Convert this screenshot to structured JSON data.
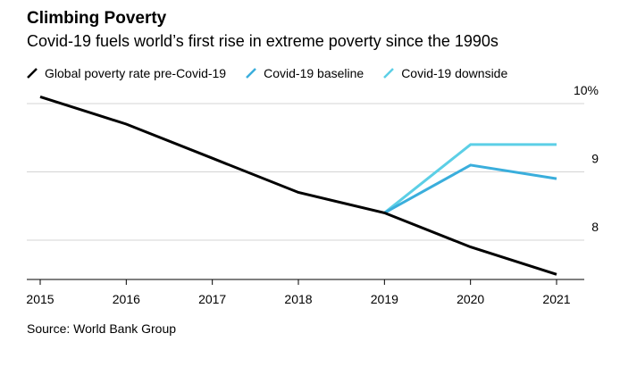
{
  "header": {
    "title": "Climbing Poverty",
    "subtitle": "Covid-19 fuels world’s first rise in extreme poverty since the 1990s"
  },
  "source": "Source: World Bank Group",
  "colors": {
    "pre_covid": "#000000",
    "baseline": "#3aaedc",
    "downside": "#5ccfe6",
    "grid": "#d4d4d4",
    "axis": "#000000"
  },
  "chart_data": {
    "type": "line",
    "title": "Climbing Poverty",
    "subtitle": "Covid-19 fuels world’s first rise in extreme poverty since the 1990s",
    "xlabel": "",
    "ylabel": "",
    "x": [
      2015,
      2016,
      2017,
      2018,
      2019,
      2020,
      2021
    ],
    "x_tick_labels": [
      "2015",
      "2016",
      "2017",
      "2018",
      "2019",
      "2020",
      "2021"
    ],
    "y_ticks": [
      8,
      9,
      10
    ],
    "y_tick_labels": [
      "8",
      "9",
      "10%"
    ],
    "ylim": [
      7.4,
      10.2
    ],
    "grid": true,
    "y_axis_position": "right",
    "legend_position": "top-left",
    "series": [
      {
        "name": "Global poverty rate pre-Covid-19",
        "color": "#000000",
        "points": [
          [
            2015,
            10.1
          ],
          [
            2016,
            9.7
          ],
          [
            2017,
            9.2
          ],
          [
            2018,
            8.7
          ],
          [
            2019,
            8.4
          ],
          [
            2020,
            7.9
          ],
          [
            2021,
            7.5
          ]
        ]
      },
      {
        "name": "Covid-19 baseline",
        "color": "#3aaedc",
        "points": [
          [
            2019,
            8.4
          ],
          [
            2020,
            9.1
          ],
          [
            2021,
            8.9
          ]
        ]
      },
      {
        "name": "Covid-19 downside",
        "color": "#5ccfe6",
        "points": [
          [
            2019,
            8.4
          ],
          [
            2020,
            9.4
          ],
          [
            2021,
            9.4
          ]
        ]
      }
    ]
  }
}
